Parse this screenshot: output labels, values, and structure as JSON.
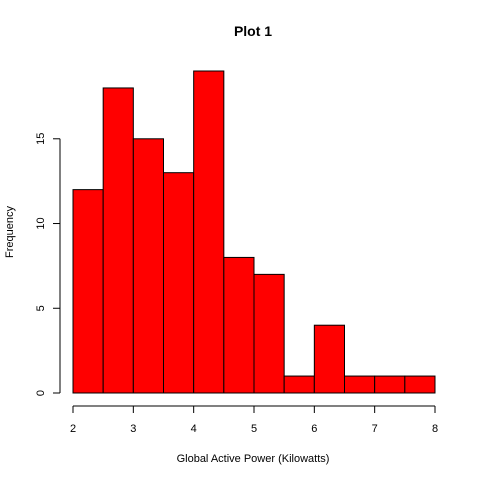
{
  "chart_data": {
    "type": "bar",
    "title": "Plot 1",
    "xlabel": "Global Active Power (Kilowatts)",
    "ylabel": "Frequency",
    "bin_edges": [
      2,
      2.5,
      3,
      3.5,
      4,
      4.5,
      5,
      5.5,
      6,
      6.5,
      7,
      7.5,
      8
    ],
    "values": [
      12,
      18,
      15,
      13,
      19,
      8,
      7,
      1,
      4,
      1,
      1,
      1
    ],
    "xlim": [
      2,
      8
    ],
    "ylim": [
      0,
      19
    ],
    "x_ticks": [
      2,
      3,
      4,
      5,
      6,
      7,
      8
    ],
    "y_ticks": [
      0,
      5,
      10,
      15
    ],
    "bar_color": "#ff0000",
    "grid": false
  }
}
